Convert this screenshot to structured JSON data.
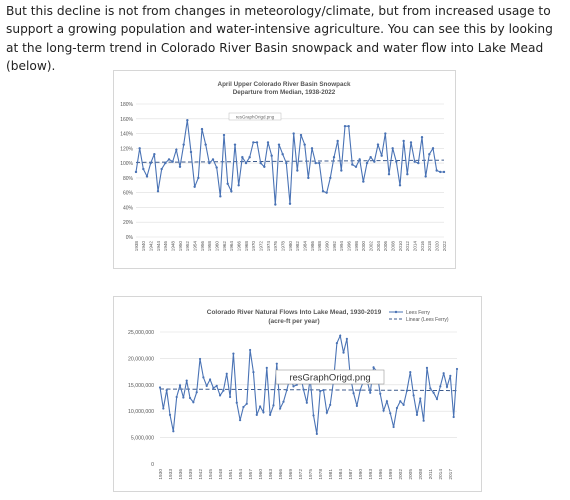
{
  "article": {
    "paragraph": "But this decline is not from changes in meteorology/climate, but from increased usage to support a growing population and water-intensive agriculture.  You can see this by looking at the long-term trend in Colorado River Basin snowpack and water flow into Lake Mead (below)."
  },
  "colors": {
    "line": "#4a73b5",
    "trend": "#3c5a8c",
    "grid": "#dddddd",
    "text": "#555555"
  },
  "chart_data": [
    {
      "type": "line",
      "title": "April Upper Colorado River Basin Snowpack",
      "subtitle": "Departure from Median, 1938-2022",
      "watermark": "resGraphOrigd.png",
      "x": [
        1938,
        1939,
        1940,
        1941,
        1942,
        1943,
        1944,
        1945,
        1946,
        1947,
        1948,
        1949,
        1950,
        1951,
        1952,
        1953,
        1954,
        1955,
        1956,
        1957,
        1958,
        1959,
        1960,
        1961,
        1962,
        1963,
        1964,
        1965,
        1966,
        1967,
        1968,
        1969,
        1970,
        1971,
        1972,
        1973,
        1974,
        1975,
        1976,
        1977,
        1978,
        1979,
        1980,
        1981,
        1982,
        1983,
        1984,
        1985,
        1986,
        1987,
        1988,
        1989,
        1990,
        1991,
        1992,
        1993,
        1994,
        1995,
        1996,
        1997,
        1998,
        1999,
        2000,
        2001,
        2002,
        2003,
        2004,
        2005,
        2006,
        2007,
        2008,
        2009,
        2010,
        2011,
        2012,
        2013,
        2014,
        2015,
        2016,
        2017,
        2018,
        2019,
        2020,
        2021,
        2022
      ],
      "x_tick_labels": [
        "1938",
        "1940",
        "1942",
        "1944",
        "1946",
        "1948",
        "1950",
        "1952",
        "1954",
        "1956",
        "1958",
        "1960",
        "1962",
        "1964",
        "1966",
        "1968",
        "1970",
        "1972",
        "1974",
        "1976",
        "1978",
        "1980",
        "1982",
        "1984",
        "1986",
        "1988",
        "1990",
        "1992",
        "1994",
        "1996",
        "1998",
        "2000",
        "2002",
        "2004",
        "2006",
        "2008",
        "2010",
        "2012",
        "2014",
        "2016",
        "2018",
        "2020",
        "2022"
      ],
      "values": [
        88,
        120,
        92,
        82,
        100,
        112,
        62,
        92,
        100,
        105,
        102,
        118,
        95,
        125,
        158,
        115,
        68,
        80,
        146,
        125,
        100,
        105,
        94,
        55,
        138,
        72,
        62,
        125,
        70,
        108,
        100,
        108,
        128,
        128,
        100,
        95,
        128,
        110,
        44,
        125,
        112,
        100,
        45,
        140,
        90,
        138,
        125,
        80,
        120,
        100,
        100,
        62,
        60,
        80,
        108,
        130,
        90,
        150,
        150,
        98,
        95,
        105,
        75,
        100,
        108,
        102,
        125,
        110,
        140,
        85,
        120,
        102,
        70,
        130,
        85,
        128,
        102,
        100,
        135,
        82,
        112,
        120,
        90,
        88,
        88
      ],
      "trend_label": "",
      "y_ticks": [
        "0%",
        "20%",
        "40%",
        "60%",
        "80%",
        "100%",
        "120%",
        "140%",
        "160%",
        "180%"
      ],
      "ylim": [
        0,
        180
      ],
      "grid": true
    },
    {
      "type": "line",
      "title": "Colorado River Natural Flows Into Lake Mead, 1930-2019",
      "subtitle": "(acre-ft per year)",
      "watermark": "resGraphOrigd.png",
      "series": [
        {
          "name": "Lees Ferry",
          "values": [
            14500000,
            10500000,
            14000000,
            9300000,
            6200000,
            12700000,
            14900000,
            12600000,
            15800000,
            12500000,
            11700000,
            13600000,
            19900000,
            16400000,
            14800000,
            16000000,
            14400000,
            14800000,
            13000000,
            13900000,
            17100000,
            12700000,
            20900000,
            11600000,
            8300000,
            10800000,
            11400000,
            21600000,
            17400000,
            9300000,
            10900000,
            9800000,
            18200000,
            9300000,
            11100000,
            19000000,
            10500000,
            11800000,
            14000000,
            16500000,
            14700000,
            15000000,
            17100000,
            14100000,
            11600000,
            16200000,
            9200000,
            5700000,
            13800000,
            14000000,
            9700000,
            11200000,
            15700000,
            22900000,
            24300000,
            21100000,
            23700000,
            16700000,
            13400000,
            11000000,
            14000000,
            15800000,
            15900000,
            13500000,
            18300000,
            17500000,
            13300000,
            10100000,
            11900000,
            9600000,
            7000000,
            10600000,
            11900000,
            11200000,
            13900000,
            17400000,
            13000000,
            9300000,
            12400000,
            8200000,
            18200000,
            14300000,
            13500000,
            12300000,
            14700000,
            17200000,
            14600000,
            16700000,
            8900000,
            18000000
          ]
        },
        {
          "name": "Linear (Lees Ferry)",
          "start": 14200000,
          "end": 13900000
        }
      ],
      "x": [
        1930,
        1931,
        1932,
        1933,
        1934,
        1935,
        1936,
        1937,
        1938,
        1939,
        1940,
        1941,
        1942,
        1943,
        1944,
        1945,
        1946,
        1947,
        1948,
        1949,
        1950,
        1951,
        1952,
        1953,
        1954,
        1955,
        1956,
        1957,
        1958,
        1959,
        1960,
        1961,
        1962,
        1963,
        1964,
        1965,
        1966,
        1967,
        1968,
        1969,
        1970,
        1971,
        1972,
        1973,
        1974,
        1975,
        1976,
        1977,
        1978,
        1979,
        1980,
        1981,
        1982,
        1983,
        1984,
        1985,
        1986,
        1987,
        1988,
        1989,
        1990,
        1991,
        1992,
        1993,
        1994,
        1995,
        1996,
        1997,
        1998,
        1999,
        2000,
        2001,
        2002,
        2003,
        2004,
        2005,
        2006,
        2007,
        2008,
        2009,
        2010,
        2011,
        2012,
        2013,
        2014,
        2015,
        2016,
        2017,
        2018,
        2019
      ],
      "x_tick_labels": [
        "1930",
        "1933",
        "1936",
        "1939",
        "1942",
        "1945",
        "1948",
        "1951",
        "1954",
        "1957",
        "1960",
        "1963",
        "1966",
        "1969",
        "1972",
        "1975",
        "1978",
        "1981",
        "1984",
        "1987",
        "1990",
        "1993",
        "1996",
        "1999",
        "2002",
        "2005",
        "2008",
        "2011",
        "2014",
        "2017"
      ],
      "y_ticks": [
        "0",
        "5,000,000",
        "10,000,000",
        "15,000,000",
        "20,000,000",
        "25,000,000"
      ],
      "ylim": [
        0,
        25000000
      ],
      "legend_position": "top-right",
      "grid": true
    }
  ]
}
